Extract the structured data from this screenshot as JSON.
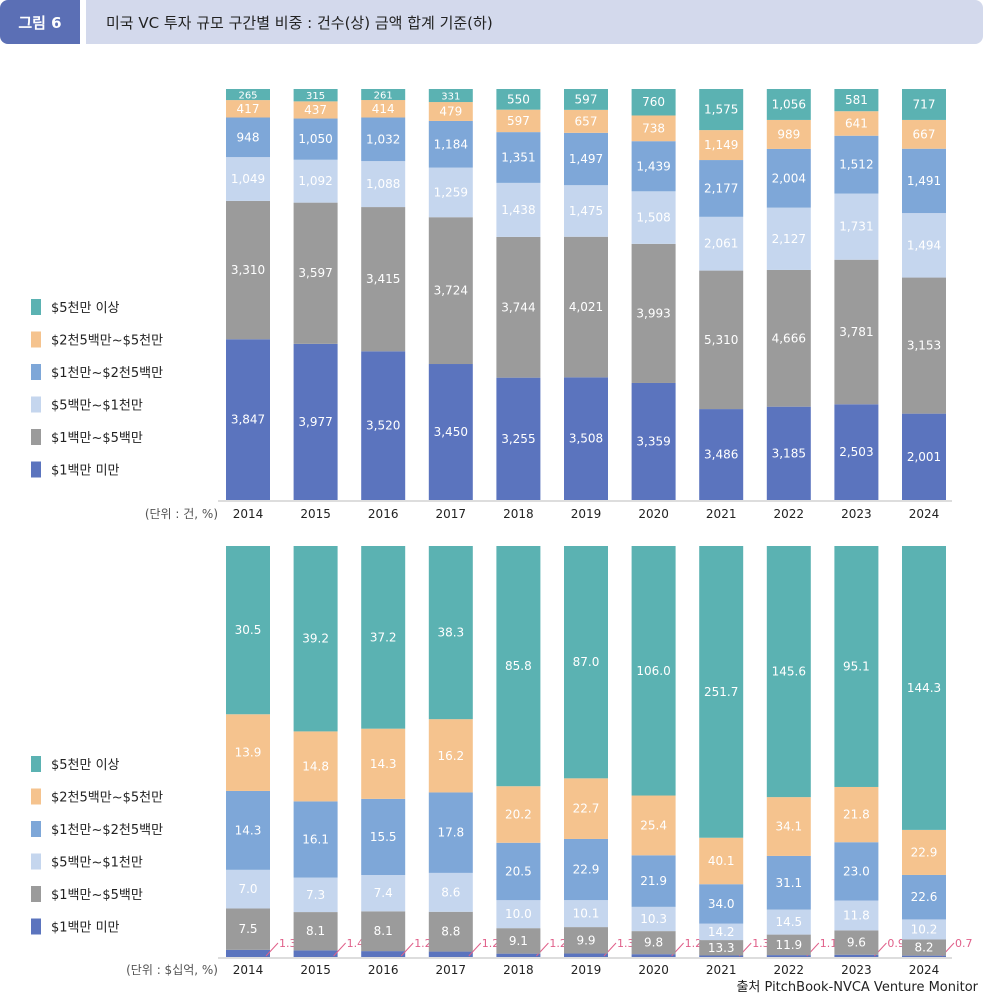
{
  "header": {
    "figure_label": "그림 6",
    "title": "미국 VC 투자 규모 구간별 비중 : 건수(상) 금액 합계 기준(하)"
  },
  "source": "출처 PitchBook-NVCA Venture Monitor",
  "colors": {
    "lt1m": "#5b74be",
    "m1_5": "#9b9b9b",
    "m5_10": "#c5d6ee",
    "m10_25": "#7ea7d8",
    "m25_50": "#f5c38e",
    "gt50": "#5bb2b2",
    "small_label": "#e0608a"
  },
  "chart_data": [
    {
      "type": "bar",
      "stacked": true,
      "percent_stacked": true,
      "unit_note": "(단위 : 건, %)",
      "categories": [
        "2014",
        "2015",
        "2016",
        "2017",
        "2018",
        "2019",
        "2020",
        "2021",
        "2022",
        "2023",
        "2024"
      ],
      "legend": [
        "$5천만 이상",
        "$2천5백만~$5천만",
        "$1천만~$2천5백만",
        "$5백만~$1천만",
        "$1백만~$5백만",
        "$1백만 미만"
      ],
      "legend_placement": "left",
      "series": [
        {
          "name": "$1백만 미만",
          "values": [
            3847,
            3977,
            3520,
            3450,
            3255,
            3508,
            3359,
            3486,
            3185,
            2503,
            2001
          ]
        },
        {
          "name": "$1백만~$5백만",
          "values": [
            3310,
            3597,
            3415,
            3724,
            3744,
            4021,
            3993,
            5310,
            4666,
            3781,
            3153
          ]
        },
        {
          "name": "$5백만~$1천만",
          "values": [
            1049,
            1092,
            1088,
            1259,
            1438,
            1475,
            1508,
            2061,
            2127,
            1731,
            1494
          ]
        },
        {
          "name": "$1천만~$2천5백만",
          "values": [
            948,
            1050,
            1032,
            1184,
            1351,
            1497,
            1439,
            2177,
            2004,
            1512,
            1491
          ]
        },
        {
          "name": "$2천5백만~$5천만",
          "values": [
            417,
            437,
            414,
            479,
            597,
            657,
            738,
            1149,
            989,
            641,
            667
          ]
        },
        {
          "name": "$5천만 이상",
          "values": [
            265,
            315,
            261,
            331,
            550,
            597,
            760,
            1575,
            1056,
            581,
            717
          ]
        }
      ],
      "value_labels": [
        [
          "3,847",
          "3,977",
          "3,520",
          "3,450",
          "3,255",
          "3,508",
          "3,359",
          "3,486",
          "3,185",
          "2,503",
          "2,001"
        ],
        [
          "3,310",
          "3,597",
          "3,415",
          "3,724",
          "3,744",
          "4,021",
          "3,993",
          "5,310",
          "4,666",
          "3,781",
          "3,153"
        ],
        [
          "1,049",
          "1,092",
          "1,088",
          "1,259",
          "1,438",
          "1,475",
          "1,508",
          "2,061",
          "2,127",
          "1,731",
          "1,494"
        ],
        [
          "948",
          "1,050",
          "1,032",
          "1,184",
          "1,351",
          "1,497",
          "1,439",
          "2,177",
          "2,004",
          "1,512",
          "1,491"
        ],
        [
          "417",
          "437",
          "414",
          "479",
          "597",
          "657",
          "738",
          "1,149",
          "989",
          "641",
          "667"
        ],
        [
          "265",
          "315",
          "261",
          "331",
          "550",
          "597",
          "760",
          "1,575",
          "1,056",
          "581",
          "717"
        ]
      ]
    },
    {
      "type": "bar",
      "stacked": true,
      "percent_stacked": true,
      "unit_note": "(단위 : $십억, %)",
      "categories": [
        "2014",
        "2015",
        "2016",
        "2017",
        "2018",
        "2019",
        "2020",
        "2021",
        "2022",
        "2023",
        "2024"
      ],
      "legend": [
        "$5천만 이상",
        "$2천5백만~$5천만",
        "$1천만~$2천5백만",
        "$5백만~$1천만",
        "$1백만~$5백만",
        "$1백만 미만"
      ],
      "legend_placement": "left",
      "series": [
        {
          "name": "$1백만 미만",
          "values": [
            1.3,
            1.4,
            1.2,
            1.2,
            1.2,
            1.3,
            1.2,
            1.3,
            1.1,
            0.9,
            0.7
          ]
        },
        {
          "name": "$1백만~$5백만",
          "values": [
            7.5,
            8.1,
            8.1,
            8.8,
            9.1,
            9.9,
            9.8,
            13.3,
            11.9,
            9.6,
            8.2
          ]
        },
        {
          "name": "$5백만~$1천만",
          "values": [
            7.0,
            7.3,
            7.4,
            8.6,
            10.0,
            10.1,
            10.3,
            14.2,
            14.5,
            11.8,
            10.2
          ]
        },
        {
          "name": "$1천만~$2천5백만",
          "values": [
            14.3,
            16.1,
            15.5,
            17.8,
            20.5,
            22.9,
            21.9,
            34.0,
            31.1,
            23.0,
            22.6
          ]
        },
        {
          "name": "$2천5백만~$5천만",
          "values": [
            13.9,
            14.8,
            14.3,
            16.2,
            20.2,
            22.7,
            25.4,
            40.1,
            34.1,
            21.8,
            22.9
          ]
        },
        {
          "name": "$5천만 이상",
          "values": [
            30.5,
            39.2,
            37.2,
            38.3,
            85.8,
            87.0,
            106.0,
            251.7,
            145.6,
            95.1,
            144.3
          ]
        }
      ],
      "value_labels": [
        [
          "1.3",
          "1.4",
          "1.2",
          "1.2",
          "1.2",
          "1.3",
          "1.2",
          "1.3",
          "1.1",
          "0.9",
          "0.7"
        ],
        [
          "7.5",
          "8.1",
          "8.1",
          "8.8",
          "9.1",
          "9.9",
          "9.8",
          "13.3",
          "11.9",
          "9.6",
          "8.2"
        ],
        [
          "7.0",
          "7.3",
          "7.4",
          "8.6",
          "10.0",
          "10.1",
          "10.3",
          "14.2",
          "14.5",
          "11.8",
          "10.2"
        ],
        [
          "14.3",
          "16.1",
          "15.5",
          "17.8",
          "20.5",
          "22.9",
          "21.9",
          "34.0",
          "31.1",
          "23.0",
          "22.6"
        ],
        [
          "13.9",
          "14.8",
          "14.3",
          "16.2",
          "20.2",
          "22.7",
          "25.4",
          "40.1",
          "34.1",
          "21.8",
          "22.9"
        ],
        [
          "30.5",
          "39.2",
          "37.2",
          "38.3",
          "85.8",
          "87.0",
          "106.0",
          "251.7",
          "145.6",
          "95.1",
          "144.3"
        ]
      ]
    }
  ]
}
